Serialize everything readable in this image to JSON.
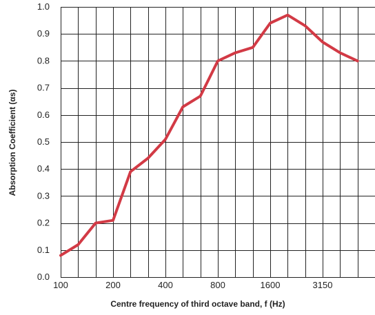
{
  "chart_data": {
    "type": "line",
    "xlabel": "Centre frequency of third octave band, f (Hz)",
    "ylabel": "Absorption Coefficient (αs)",
    "ylim": [
      0,
      1.0
    ],
    "grid": true,
    "line_color": "#d23a45",
    "grid_color": "#222222",
    "x_tick_labels": [
      "100",
      "200",
      "400",
      "800",
      "1600",
      "3150"
    ],
    "y_tick_labels": [
      "0.0",
      "0.1",
      "0.2",
      "0.3",
      "0.4",
      "0.5",
      "0.6",
      "0.7",
      "0.8",
      "0.9",
      "1.0"
    ],
    "x": [
      100,
      125,
      160,
      200,
      250,
      315,
      400,
      500,
      630,
      800,
      1000,
      1250,
      1600,
      2000,
      2500,
      3150,
      4000,
      5000
    ],
    "series": [
      {
        "values": [
          0.08,
          0.12,
          0.2,
          0.21,
          0.39,
          0.44,
          0.51,
          0.63,
          0.67,
          0.8,
          0.83,
          0.85,
          0.94,
          0.97,
          0.93,
          0.87,
          0.83,
          0.8
        ]
      }
    ]
  }
}
